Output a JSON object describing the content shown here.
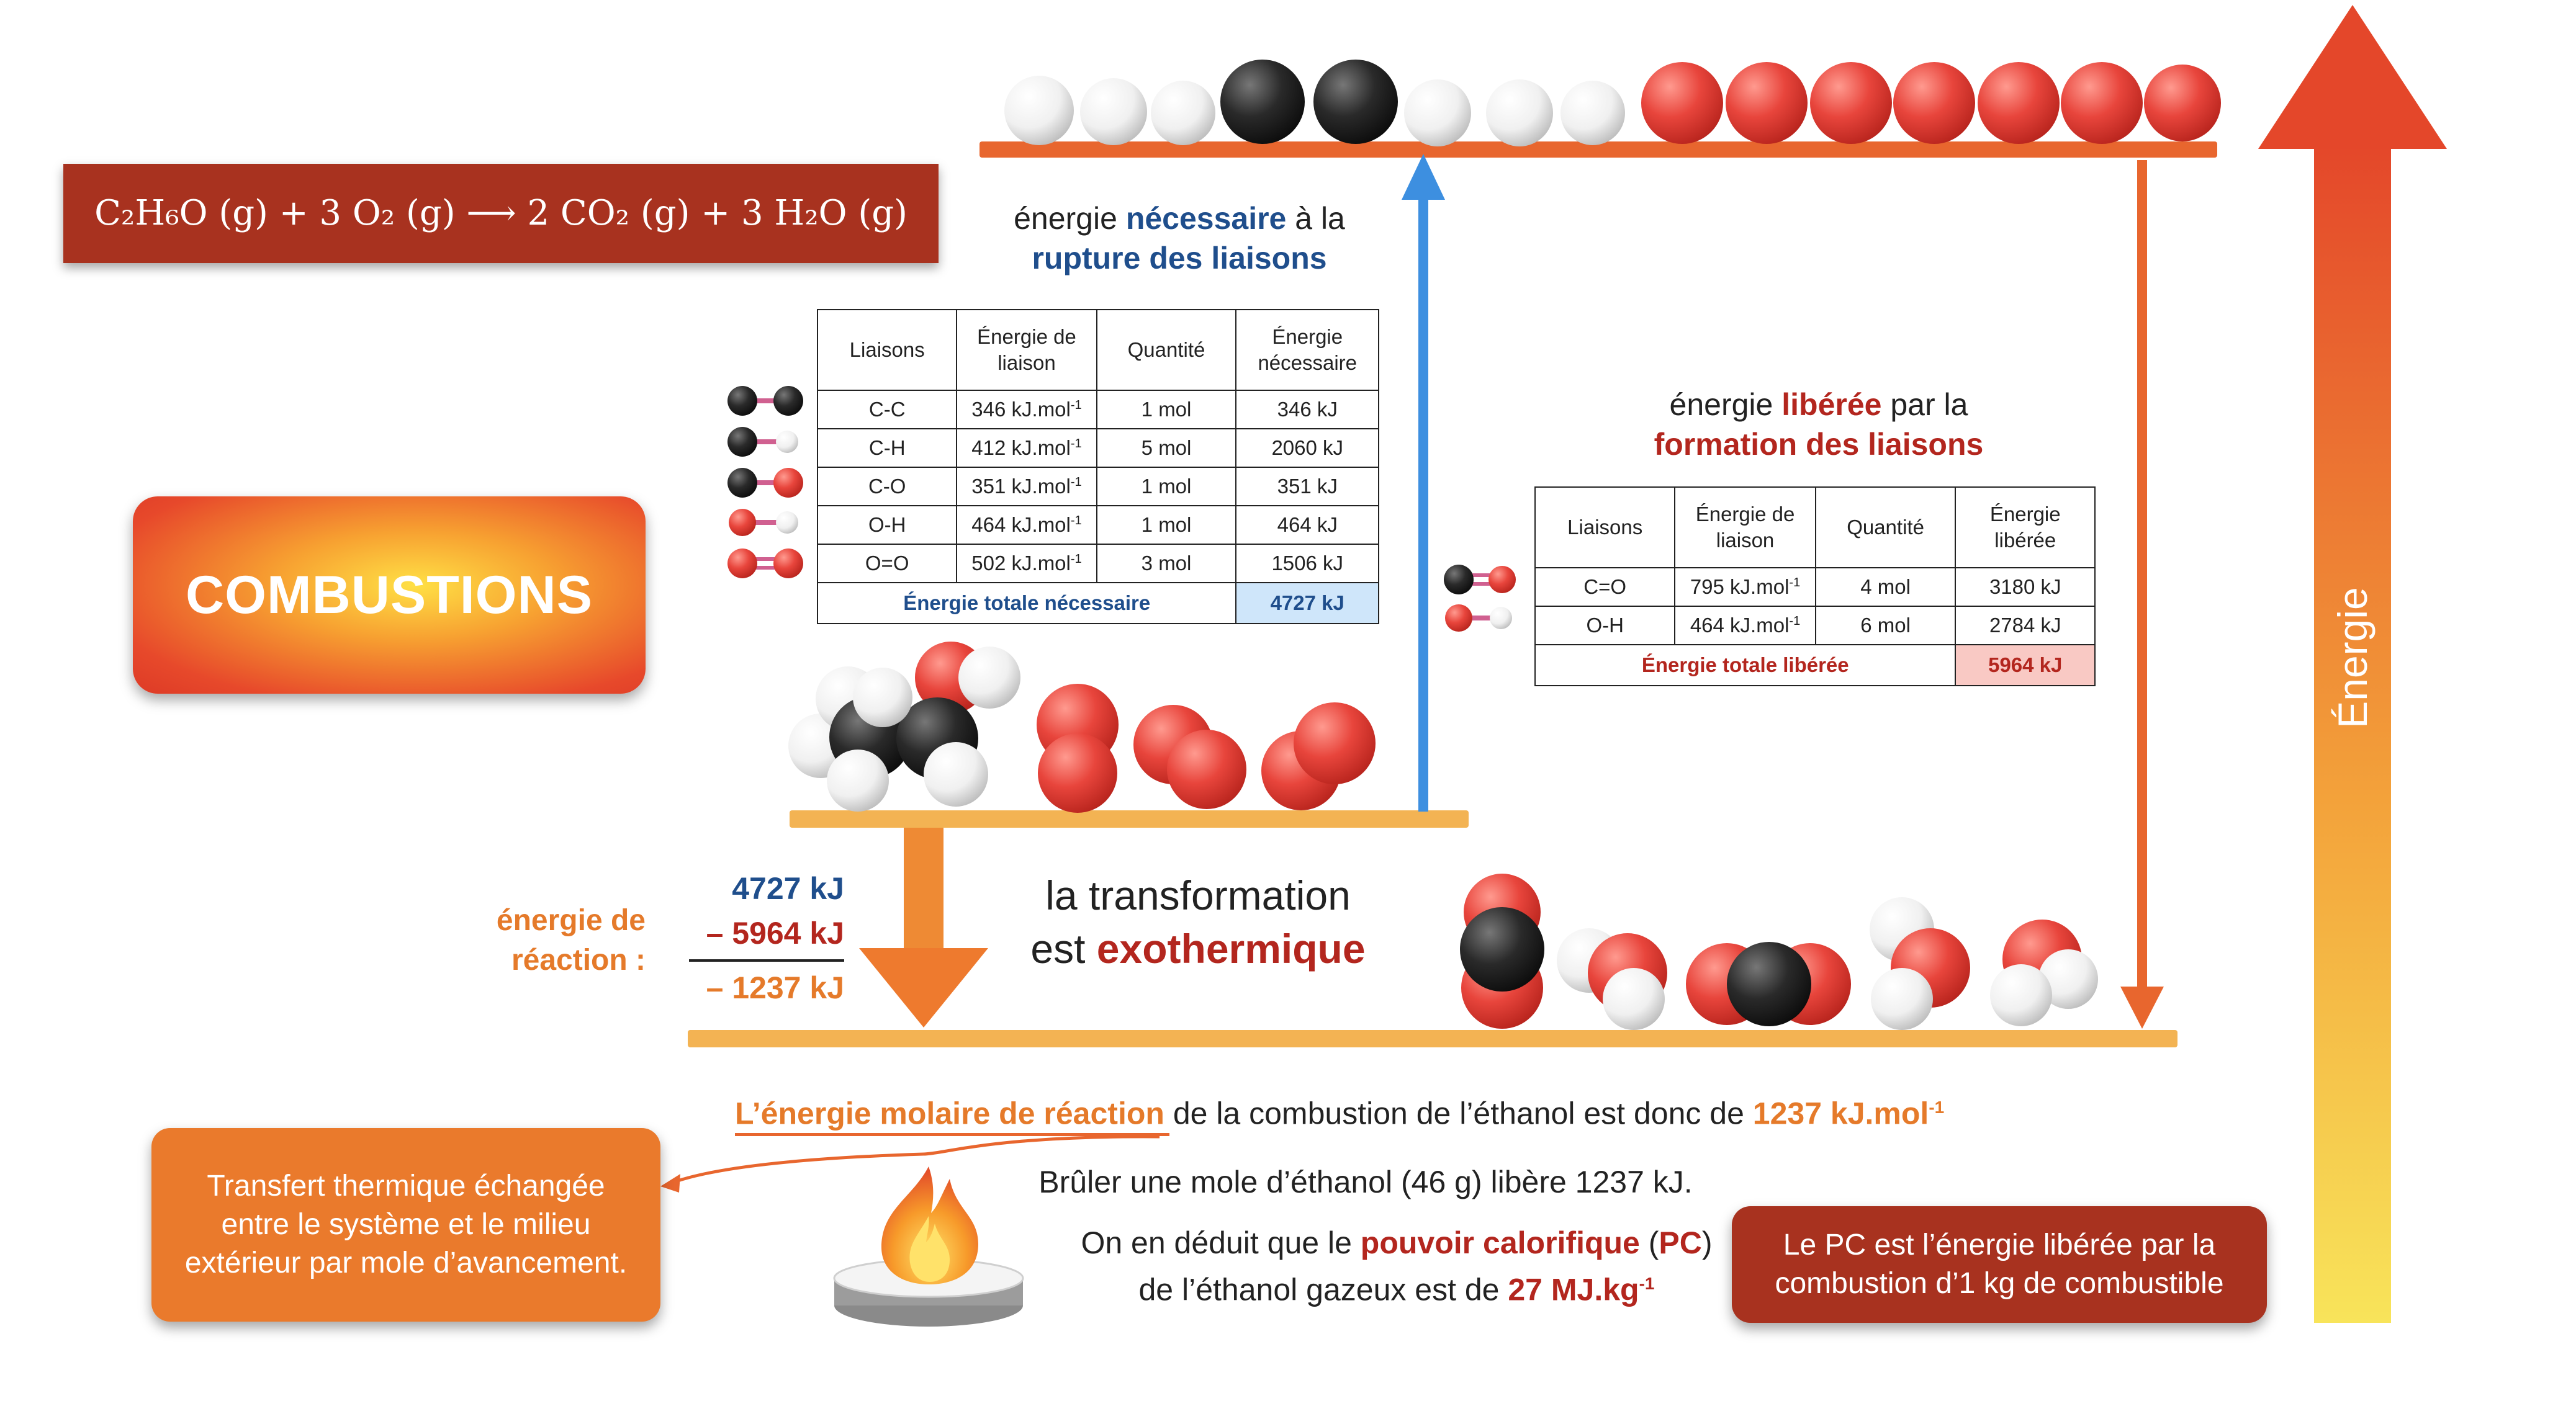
{
  "equation": "C₂H₆O (g) + 3 O₂ (g) ⟶ 2 CO₂ (g) + 3 H₂O (g)",
  "title": "COMBUSTIONS",
  "axis_label": "Énergie",
  "rupture": {
    "caption_pre": "énergie ",
    "caption_em": "nécessaire",
    "caption_post": " à la",
    "caption_line2": "rupture des liaisons",
    "headers": [
      "Liaisons",
      "Énergie de liaison",
      "Quantité",
      "Énergie nécessaire"
    ],
    "rows": [
      {
        "bond": "C-C",
        "energy": "346 kJ.mol",
        "qty": "1 mol",
        "total": "346 kJ"
      },
      {
        "bond": "C-H",
        "energy": "412 kJ.mol",
        "qty": "5 mol",
        "total": "2060 kJ"
      },
      {
        "bond": "C-O",
        "energy": "351 kJ.mol",
        "qty": "1 mol",
        "total": "351 kJ"
      },
      {
        "bond": "O-H",
        "energy": "464 kJ.mol",
        "qty": "1 mol",
        "total": "464 kJ"
      },
      {
        "bond": "O=O",
        "energy": "502 kJ.mol",
        "qty": "3 mol",
        "total": "1506 kJ"
      }
    ],
    "exponent": "-1",
    "total_label": "Énergie totale nécessaire",
    "total_value": "4727 kJ"
  },
  "formation": {
    "caption_pre": "énergie ",
    "caption_em": "libérée",
    "caption_post": " par la",
    "caption_line2": "formation des liaisons",
    "headers": [
      "Liaisons",
      "Énergie de liaison",
      "Quantité",
      "Énergie libérée"
    ],
    "rows": [
      {
        "bond": "C=O",
        "energy": "795 kJ.mol",
        "qty": "4 mol",
        "total": "3180 kJ"
      },
      {
        "bond": "O-H",
        "energy": "464 kJ.mol",
        "qty": "6 mol",
        "total": "2784 kJ"
      }
    ],
    "exponent": "-1",
    "total_label": "Énergie totale libérée",
    "total_value": "5964 kJ"
  },
  "reaction": {
    "label_line1": "énergie de",
    "label_line2": "réaction :",
    "value1": "4727 kJ",
    "value2": "– 5964 kJ",
    "result": "– 1237 kJ"
  },
  "transformation": {
    "line1": "la transformation",
    "line2_pre": "est ",
    "line2_em": "exothermique"
  },
  "molar": {
    "em": "L’énergie molaire de réaction",
    "mid": " de la combustion de l’éthanol est donc de ",
    "value": "1237 kJ.mol",
    "exp": "-1"
  },
  "burn_text": "Brûler une mole d’éthanol (46 g) libère 1237 kJ.",
  "pc": {
    "pre": "On en déduit que le ",
    "em": "pouvoir calorifique",
    "paren_open": " (",
    "abbr": "PC",
    "paren_close": ")",
    "line2_pre": "de l’éthanol gazeux est de ",
    "value": "27 MJ.kg",
    "exp": "-1"
  },
  "note_left": "Transfert thermique échangée entre le système et le milieu extérieur par mole d’avancement.",
  "note_right": "Le PC est l’énergie libérée par la combustion d’1 kg de combustible",
  "colors": {
    "carbon": "#2a2a2a",
    "hydrogen": "#f2f2f2",
    "oxygen": "#e8453c",
    "shelf": "#f3b353",
    "blue_arrow": "#3d8fe0",
    "orange_arrow": "#e8662e",
    "dark_red": "#a8321f"
  }
}
